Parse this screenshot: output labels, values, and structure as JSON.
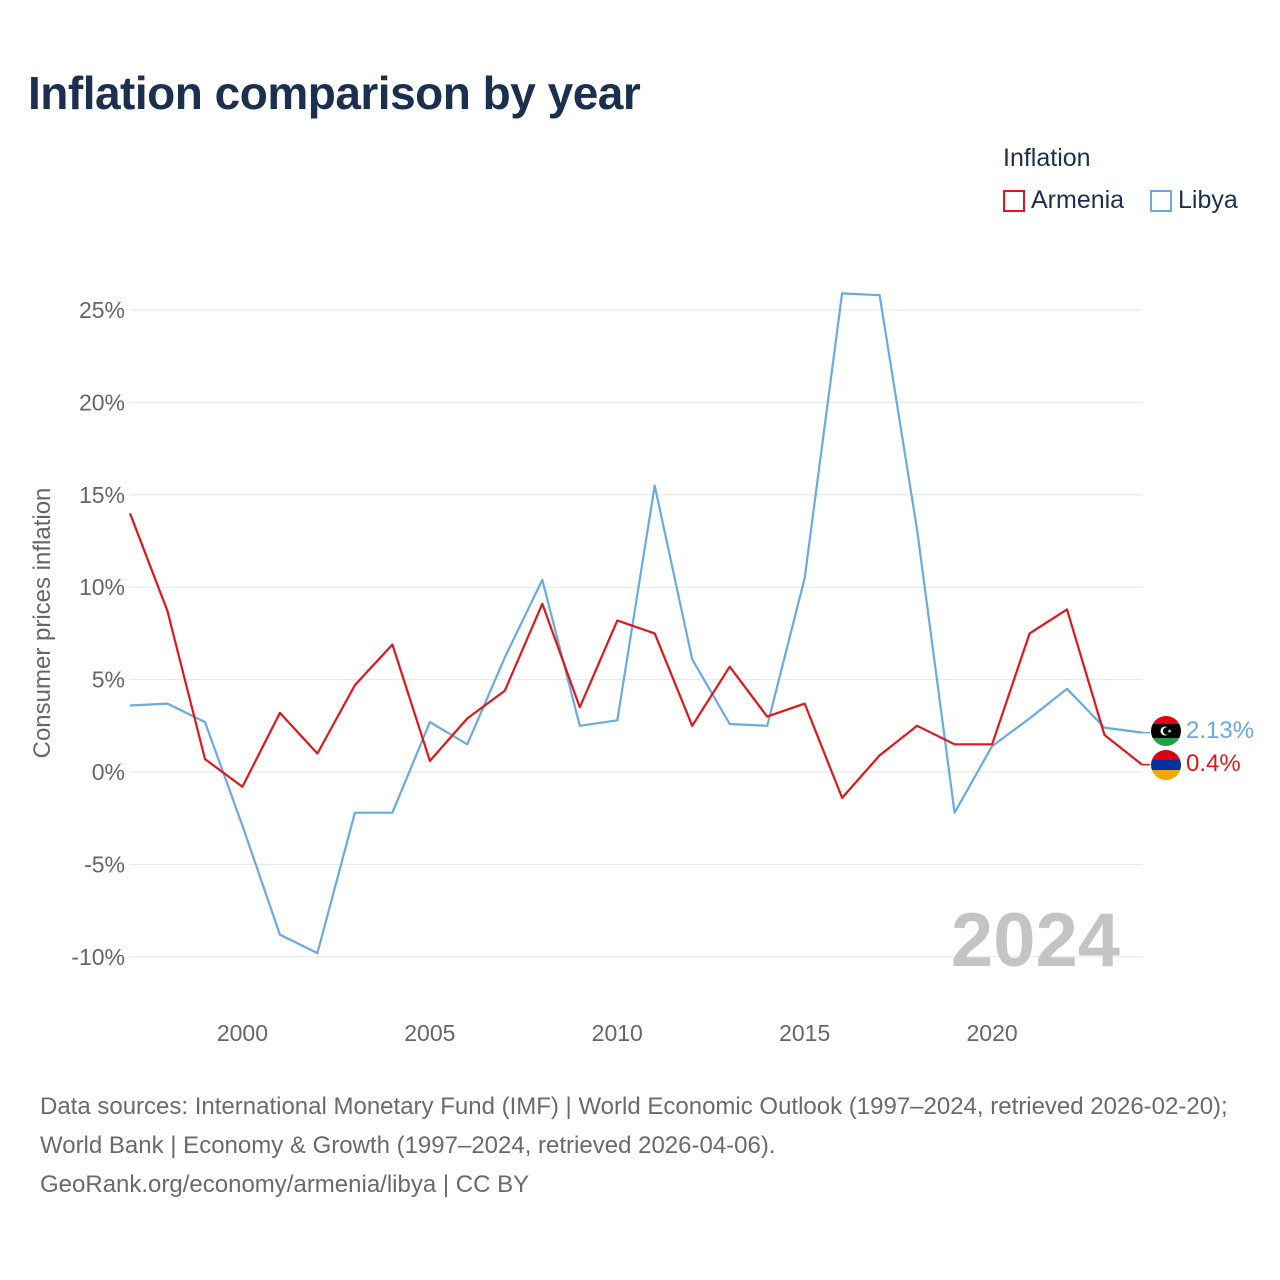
{
  "title": "Inflation comparison by year",
  "legend": {
    "title": "Inflation",
    "items": [
      {
        "label": "Armenia",
        "color": "#e0161b"
      },
      {
        "label": "Libya",
        "color": "#6aaae4"
      }
    ]
  },
  "chart_data": {
    "type": "line",
    "title": "Inflation comparison by year",
    "xlabel": "",
    "ylabel": "Consumer prices inflation",
    "xlim": [
      1997,
      2024
    ],
    "ylim": [
      -11.5,
      27
    ],
    "x_ticks": [
      2000,
      2005,
      2010,
      2015,
      2020
    ],
    "x_tick_labels": [
      "2000",
      "2005",
      "2010",
      "2015",
      "2020"
    ],
    "y_ticks": [
      -10,
      -5,
      0,
      5,
      10,
      15,
      20,
      25
    ],
    "y_tick_labels": [
      "-10%",
      "-5%",
      "0%",
      "5%",
      "10%",
      "15%",
      "20%",
      "25%"
    ],
    "grid": true,
    "year_watermark": "2024",
    "x": [
      1997,
      1998,
      1999,
      2000,
      2001,
      2002,
      2003,
      2004,
      2005,
      2006,
      2007,
      2008,
      2009,
      2010,
      2011,
      2012,
      2013,
      2014,
      2015,
      2016,
      2017,
      2018,
      2019,
      2020,
      2021,
      2022,
      2023,
      2024
    ],
    "series": [
      {
        "name": "Armenia",
        "color": "#e0161b",
        "end_label": "0.4%",
        "values": [
          14.0,
          8.7,
          0.7,
          -0.8,
          3.2,
          1.0,
          4.7,
          6.9,
          0.6,
          2.9,
          4.4,
          9.1,
          3.5,
          8.2,
          7.5,
          2.5,
          5.7,
          3.0,
          3.7,
          -1.4,
          0.9,
          2.5,
          1.5,
          1.5,
          7.5,
          8.8,
          2.0,
          0.4
        ]
      },
      {
        "name": "Libya",
        "color": "#6aaae4",
        "end_label": "2.13%",
        "values": [
          3.6,
          3.7,
          2.7,
          -2.9,
          -8.8,
          -9.8,
          -2.2,
          -2.2,
          2.7,
          1.5,
          6.2,
          10.4,
          2.5,
          2.8,
          15.5,
          6.1,
          2.6,
          2.5,
          10.5,
          25.9,
          25.8,
          13.1,
          -2.2,
          1.4,
          2.9,
          4.5,
          2.4,
          2.13
        ]
      }
    ]
  },
  "footer": {
    "sources": "Data sources: International Monetary Fund (IMF) | World Economic Outlook (1997–2024, retrieved 2026-02-20); World Bank | Economy & Growth (1997–2024, retrieved 2026-04-06).",
    "credit": "GeoRank.org/economy/armenia/libya | CC BY"
  }
}
